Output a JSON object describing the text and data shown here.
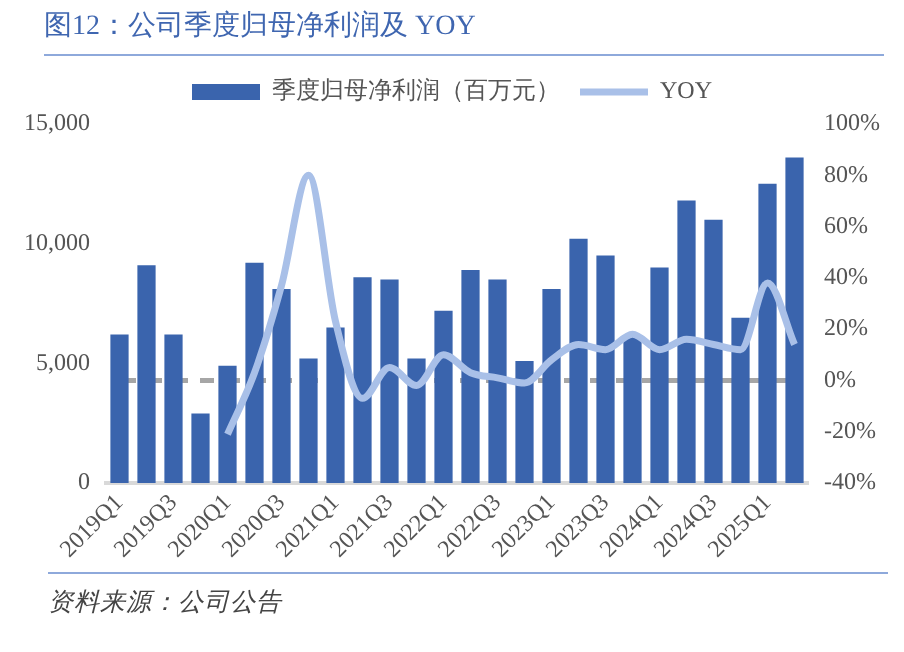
{
  "chart_data": {
    "type": "bar",
    "title": "图12：公司季度归母净利润及 YOY",
    "categories": [
      "2019Q1",
      null,
      "2019Q3",
      null,
      "2020Q1",
      null,
      "2020Q3",
      null,
      "2021Q1",
      null,
      "2021Q3",
      null,
      "2022Q1",
      null,
      "2022Q3",
      null,
      "2023Q1",
      null,
      "2023Q3",
      null,
      "2024Q1",
      null,
      "2024Q3",
      null,
      "2025Q1",
      null
    ],
    "series": [
      {
        "name": "季度归母净利润（百万元）",
        "color": "#3a64ad",
        "values": [
          6200,
          9100,
          6200,
          2900,
          4900,
          9200,
          8100,
          5200,
          6500,
          8600,
          8500,
          5200,
          7200,
          8900,
          8500,
          5100,
          8100,
          10200,
          9500,
          6100,
          9000,
          11800,
          11000,
          6900,
          12500,
          13600
        ]
      },
      {
        "name": "YOY",
        "type": "line",
        "axis": "y2",
        "color": "#a9c0e8",
        "values": [
          null,
          null,
          null,
          null,
          -21,
          3,
          37,
          80,
          23,
          -7,
          5,
          -2,
          10,
          3,
          1,
          -1,
          8,
          14,
          12,
          18,
          12,
          16,
          14,
          12,
          38,
          14
        ]
      }
    ],
    "ylim": [
      0,
      15000
    ],
    "yticks": [
      0,
      {
        "value": 5000,
        "label": "5,000"
      },
      {
        "value": 10000,
        "label": "10,000"
      },
      {
        "value": 15000,
        "label": "15,000"
      }
    ],
    "y2lim": [
      -40,
      100
    ],
    "y2ticks": [
      {
        "value": -40,
        "label": "-40%"
      },
      {
        "value": -20,
        "label": "-20%"
      },
      {
        "value": 0,
        "label": "0%"
      },
      {
        "value": 20,
        "label": "20%"
      },
      {
        "value": 40,
        "label": "40%"
      },
      {
        "value": 60,
        "label": "60%"
      },
      {
        "value": 80,
        "label": "80%"
      },
      {
        "value": 100,
        "label": "100%"
      }
    ],
    "ref_lines": [
      {
        "axis": "y2",
        "value": 0,
        "color": "#a6a6a6",
        "line_style": "dashed"
      }
    ],
    "legend": "top",
    "grid": false,
    "marker": "none",
    "annotations": [
      "资料来源：公司公告"
    ]
  }
}
